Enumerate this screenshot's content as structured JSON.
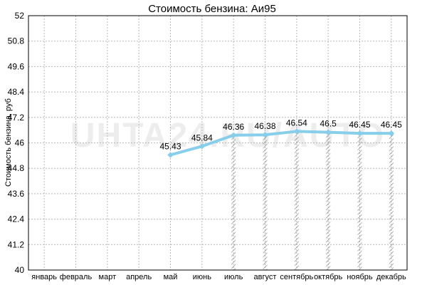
{
  "chart_data": {
    "type": "line",
    "title": "Стоимость бензина: Аи95",
    "xlabel": "",
    "ylabel": "Стоимость бензина, руб",
    "ylim": [
      40,
      52
    ],
    "yticks": [
      40,
      41.2,
      42.4,
      43.6,
      44.8,
      46,
      47.2,
      48.4,
      49.6,
      50.8,
      52
    ],
    "categories": [
      "январь",
      "февраль",
      "март",
      "апрель",
      "май",
      "июнь",
      "июль",
      "август",
      "сентябрь",
      "октябрь",
      "ноябрь",
      "декабрь"
    ],
    "series": [
      {
        "values": [
          null,
          null,
          null,
          null,
          45.43,
          45.84,
          46.36,
          46.38,
          46.54,
          46.5,
          46.45,
          46.45
        ]
      }
    ],
    "grid": true,
    "line_color": "#87ceeb",
    "watermark": "UHTA24.RU/AUTO"
  }
}
